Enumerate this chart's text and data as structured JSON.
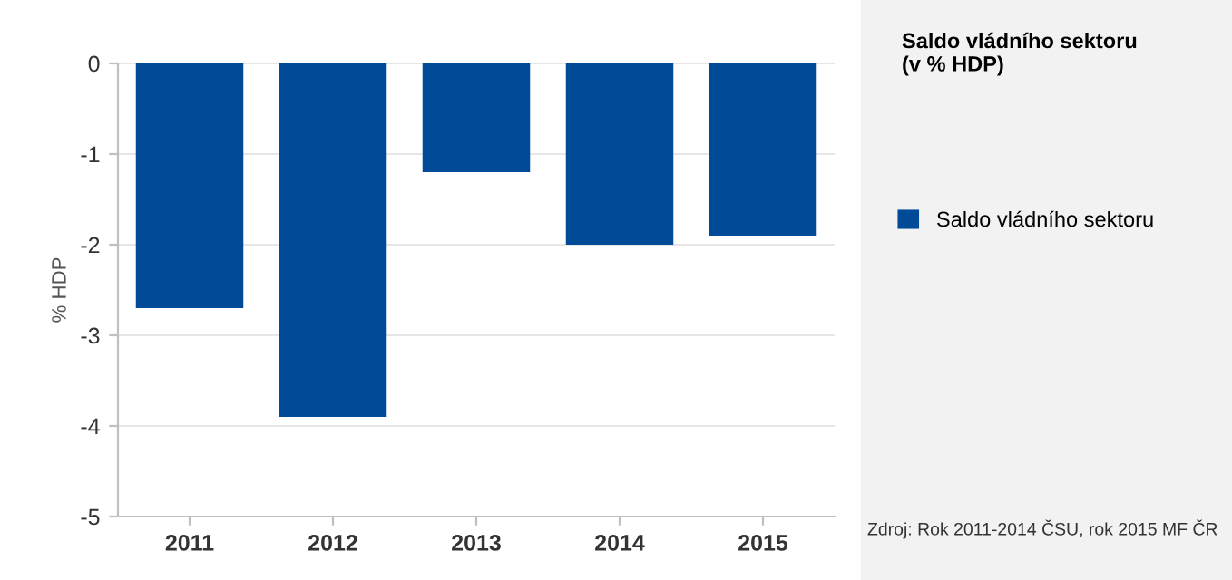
{
  "chart_data": {
    "type": "bar",
    "legend_title": "Saldo vládního sektoru\n(v % HDP)",
    "ylabel": "% HDP",
    "categories": [
      "2011",
      "2012",
      "2013",
      "2014",
      "2015"
    ],
    "series": [
      {
        "name": "Saldo vládního sektoru",
        "color": "#004a98",
        "values": [
          -2.7,
          -3.9,
          -1.2,
          -2.0,
          -1.9
        ]
      }
    ],
    "ylim": [
      -5,
      0
    ],
    "yticks": [
      -5,
      -4,
      -3,
      -2,
      -1,
      0
    ],
    "grid": "y",
    "legend": "right",
    "annotations": [
      "Zdroj: Rok 2011-2014 ČSU, rok 2015 MF ČR"
    ]
  }
}
